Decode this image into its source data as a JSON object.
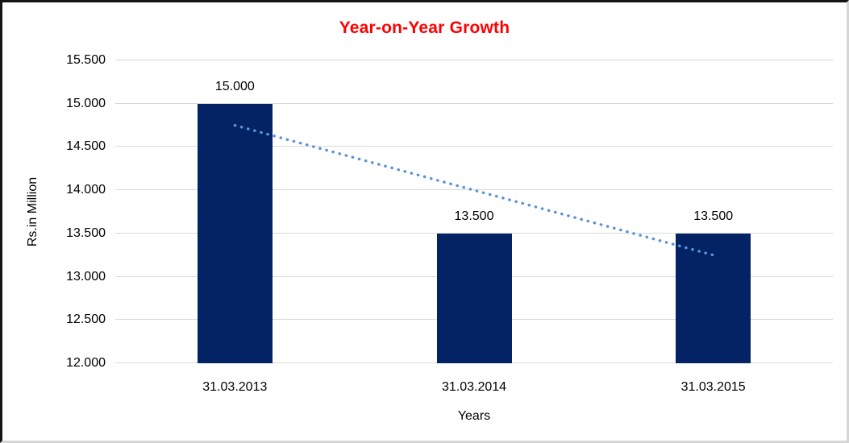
{
  "chart_data": {
    "type": "bar",
    "title": "Year-on-Year Growth",
    "title_color": "#ff0000",
    "xlabel": "Years",
    "ylabel": "Rs.in Million",
    "categories": [
      "31.03.2013",
      "31.03.2014",
      "31.03.2015"
    ],
    "values": [
      15.0,
      13.5,
      13.5
    ],
    "data_labels": [
      "15.000",
      "13.500",
      "13.500"
    ],
    "bar_color": "#042365",
    "ylim": [
      12.0,
      15.5
    ],
    "ytick_step": 0.5,
    "yticks": [
      {
        "value": 15.5,
        "label": "15.500"
      },
      {
        "value": 15.0,
        "label": "15.000"
      },
      {
        "value": 14.5,
        "label": "14.500"
      },
      {
        "value": 14.0,
        "label": "14.000"
      },
      {
        "value": 13.5,
        "label": "13.500"
      },
      {
        "value": 13.0,
        "label": "13.000"
      },
      {
        "value": 12.5,
        "label": "12.500"
      },
      {
        "value": 12.0,
        "label": "12.000"
      }
    ],
    "grid": true,
    "gridline_color": "#d9d9d9",
    "legend": "none",
    "trendline": {
      "type": "linear",
      "style": "dotted",
      "color": "#5b93d6",
      "start_value": 14.75,
      "end_value": 13.25
    }
  }
}
